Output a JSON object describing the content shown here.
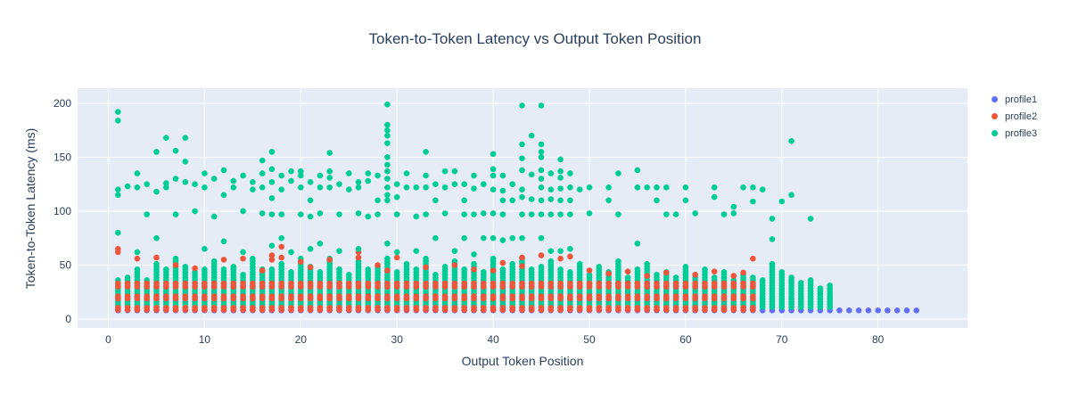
{
  "title": "Token-to-Token Latency vs Output Token Position",
  "chart_data": {
    "type": "scatter",
    "title": "Token-to-Token Latency vs Output Token Position",
    "xlabel": "Output Token Position",
    "ylabel": "Token-to-Token Latency (ms)",
    "x_ticks": [
      0,
      10,
      20,
      30,
      40,
      50,
      60,
      70,
      80
    ],
    "y_ticks": [
      0,
      50,
      100,
      150,
      200
    ],
    "x_range": [
      -3.2,
      89.3
    ],
    "y_range": [
      -8.3,
      214
    ],
    "grid": true,
    "legend_position": "outside-top-right",
    "plot_bg_color": "#e5ecf6",
    "grid_color": "#ffffff",
    "text_color": "#2a3f5f",
    "marker_radius": 3.3,
    "series": [
      {
        "name": "profile1",
        "color": "#636efa",
        "row": {
          "x_from": 1,
          "x_to": 84,
          "y": 8
        }
      },
      {
        "name": "profile2",
        "color": "#ef553b",
        "columns": {
          "x_from": 1,
          "x_to": 67,
          "ys": [
            8.5,
            10.5,
            19,
            21,
            30,
            33
          ],
          "tops": [
            33,
            36,
            33,
            38,
            34,
            36,
            33,
            35,
            38,
            33,
            36,
            34,
            33,
            38,
            35,
            33,
            36,
            33,
            38,
            34,
            33,
            36,
            35,
            33,
            38,
            33,
            36,
            34,
            38,
            33,
            35,
            36,
            33,
            38,
            34,
            33,
            36,
            33,
            35,
            38,
            33,
            34,
            36,
            33,
            38,
            35,
            33,
            36,
            34,
            33,
            38,
            33,
            36,
            35,
            33,
            38,
            34,
            33,
            36,
            33,
            38,
            35,
            33,
            36,
            34,
            33,
            38
          ]
        },
        "points": [
          [
            1,
            62
          ],
          [
            1,
            65
          ],
          [
            3,
            56
          ],
          [
            5,
            57
          ],
          [
            7,
            50
          ],
          [
            9,
            47
          ],
          [
            12,
            55
          ],
          [
            14,
            56
          ],
          [
            16,
            45
          ],
          [
            17,
            55
          ],
          [
            17,
            59
          ],
          [
            18,
            57
          ],
          [
            18,
            67
          ],
          [
            20,
            53
          ],
          [
            21,
            48
          ],
          [
            23,
            55
          ],
          [
            26,
            57
          ],
          [
            26,
            62
          ],
          [
            28,
            50
          ],
          [
            29,
            45
          ],
          [
            30,
            57
          ],
          [
            33,
            48
          ],
          [
            36,
            50
          ],
          [
            38,
            46
          ],
          [
            40,
            45
          ],
          [
            41,
            52
          ],
          [
            43,
            57
          ],
          [
            43,
            49
          ],
          [
            45,
            59
          ],
          [
            47,
            56
          ],
          [
            48,
            58
          ],
          [
            50,
            45
          ],
          [
            52,
            42
          ],
          [
            54,
            44
          ],
          [
            56,
            40
          ],
          [
            58,
            43
          ],
          [
            61,
            41
          ],
          [
            63,
            44
          ],
          [
            65,
            40
          ],
          [
            66,
            43
          ],
          [
            67,
            56
          ]
        ]
      },
      {
        "name": "profile3",
        "color": "#00cc96",
        "columns": {
          "x_from": 1,
          "x_to": 75,
          "y_start": 11,
          "y_step": 2.5,
          "tops": [
            36,
            40,
            46,
            38,
            52,
            48,
            57,
            50,
            44,
            48,
            54,
            46,
            50,
            42,
            56,
            48,
            46,
            52,
            44,
            58,
            50,
            44,
            56,
            48,
            42,
            54,
            46,
            50,
            58,
            44,
            52,
            46,
            56,
            42,
            50,
            54,
            46,
            52,
            44,
            58,
            48,
            52,
            56,
            46,
            50,
            54,
            48,
            44,
            52,
            42,
            50,
            44,
            55,
            40,
            46,
            52,
            42,
            44,
            40,
            50,
            42,
            46,
            40,
            44,
            38,
            42,
            40,
            36,
            52,
            44,
            40,
            34,
            36,
            30,
            32
          ]
        },
        "points": [
          [
            1,
            192
          ],
          [
            1,
            184
          ],
          [
            1,
            120
          ],
          [
            1,
            115
          ],
          [
            1,
            80
          ],
          [
            2,
            123
          ],
          [
            3,
            135
          ],
          [
            3,
            122
          ],
          [
            3,
            62
          ],
          [
            4,
            125
          ],
          [
            4,
            97
          ],
          [
            5,
            155
          ],
          [
            5,
            118
          ],
          [
            5,
            75
          ],
          [
            6,
            168
          ],
          [
            6,
            126
          ],
          [
            6,
            122
          ],
          [
            7,
            156
          ],
          [
            7,
            130
          ],
          [
            7,
            97
          ],
          [
            8,
            168
          ],
          [
            8,
            146
          ],
          [
            8,
            127
          ],
          [
            9,
            125
          ],
          [
            9,
            100
          ],
          [
            10,
            135
          ],
          [
            10,
            122
          ],
          [
            10,
            65
          ],
          [
            11,
            130
          ],
          [
            11,
            95
          ],
          [
            12,
            138
          ],
          [
            12,
            115
          ],
          [
            12,
            72
          ],
          [
            13,
            128
          ],
          [
            13,
            122
          ],
          [
            14,
            133
          ],
          [
            14,
            100
          ],
          [
            14,
            62
          ],
          [
            15,
            127
          ],
          [
            15,
            120
          ],
          [
            16,
            147
          ],
          [
            16,
            135
          ],
          [
            16,
            122
          ],
          [
            16,
            98
          ],
          [
            17,
            155
          ],
          [
            17,
            139
          ],
          [
            17,
            127
          ],
          [
            17,
            112
          ],
          [
            17,
            97
          ],
          [
            17,
            68
          ],
          [
            18,
            133
          ],
          [
            18,
            120
          ],
          [
            18,
            97
          ],
          [
            18,
            75
          ],
          [
            19,
            137
          ],
          [
            19,
            128
          ],
          [
            19,
            62
          ],
          [
            20,
            137
          ],
          [
            20,
            133
          ],
          [
            20,
            122
          ],
          [
            20,
            97
          ],
          [
            21,
            127
          ],
          [
            21,
            110
          ],
          [
            21,
            95
          ],
          [
            21,
            65
          ],
          [
            22,
            133
          ],
          [
            22,
            122
          ],
          [
            22,
            98
          ],
          [
            22,
            70
          ],
          [
            23,
            154
          ],
          [
            23,
            137
          ],
          [
            23,
            131
          ],
          [
            23,
            122
          ],
          [
            24,
            125
          ],
          [
            24,
            97
          ],
          [
            24,
            63
          ],
          [
            25,
            135
          ],
          [
            25,
            120
          ],
          [
            26,
            127
          ],
          [
            26,
            122
          ],
          [
            26,
            98
          ],
          [
            26,
            65
          ],
          [
            27,
            135
          ],
          [
            27,
            128
          ],
          [
            27,
            95
          ],
          [
            28,
            133
          ],
          [
            28,
            110
          ],
          [
            28,
            97
          ],
          [
            29,
            199
          ],
          [
            29,
            180
          ],
          [
            29,
            175
          ],
          [
            29,
            170
          ],
          [
            29,
            163
          ],
          [
            29,
            150
          ],
          [
            29,
            143
          ],
          [
            29,
            137
          ],
          [
            29,
            130
          ],
          [
            29,
            122
          ],
          [
            29,
            115
          ],
          [
            29,
            110
          ],
          [
            29,
            70
          ],
          [
            30,
            125
          ],
          [
            30,
            113
          ],
          [
            30,
            97
          ],
          [
            30,
            62
          ],
          [
            31,
            135
          ],
          [
            31,
            122
          ],
          [
            32,
            122
          ],
          [
            32,
            95
          ],
          [
            32,
            63
          ],
          [
            33,
            155
          ],
          [
            33,
            133
          ],
          [
            33,
            122
          ],
          [
            33,
            97
          ],
          [
            34,
            125
          ],
          [
            34,
            110
          ],
          [
            34,
            75
          ],
          [
            35,
            137
          ],
          [
            35,
            122
          ],
          [
            35,
            98
          ],
          [
            36,
            137
          ],
          [
            36,
            125
          ],
          [
            36,
            63
          ],
          [
            37,
            125
          ],
          [
            37,
            110
          ],
          [
            37,
            97
          ],
          [
            37,
            75
          ],
          [
            38,
            133
          ],
          [
            38,
            121
          ],
          [
            38,
            97
          ],
          [
            38,
            60
          ],
          [
            39,
            125
          ],
          [
            39,
            98
          ],
          [
            39,
            75
          ],
          [
            40,
            153
          ],
          [
            40,
            139
          ],
          [
            40,
            133
          ],
          [
            40,
            120
          ],
          [
            40,
            98
          ],
          [
            40,
            75
          ],
          [
            41,
            133
          ],
          [
            41,
            119
          ],
          [
            41,
            110
          ],
          [
            41,
            97
          ],
          [
            41,
            73
          ],
          [
            42,
            125
          ],
          [
            42,
            110
          ],
          [
            42,
            75
          ],
          [
            43,
            198
          ],
          [
            43,
            162
          ],
          [
            43,
            149
          ],
          [
            43,
            138
          ],
          [
            43,
            120
          ],
          [
            43,
            113
          ],
          [
            43,
            97
          ],
          [
            43,
            75
          ],
          [
            44,
            170
          ],
          [
            44,
            134
          ],
          [
            44,
            111
          ],
          [
            44,
            97
          ],
          [
            45,
            198
          ],
          [
            45,
            162
          ],
          [
            45,
            155
          ],
          [
            45,
            150
          ],
          [
            45,
            138
          ],
          [
            45,
            130
          ],
          [
            45,
            122
          ],
          [
            45,
            110
          ],
          [
            45,
            97
          ],
          [
            45,
            75
          ],
          [
            46,
            135
          ],
          [
            46,
            120
          ],
          [
            46,
            111
          ],
          [
            46,
            97
          ],
          [
            46,
            63
          ],
          [
            47,
            148
          ],
          [
            47,
            137
          ],
          [
            47,
            131
          ],
          [
            47,
            121
          ],
          [
            47,
            110
          ],
          [
            47,
            97
          ],
          [
            47,
            63
          ],
          [
            48,
            135
          ],
          [
            48,
            122
          ],
          [
            48,
            110
          ],
          [
            48,
            97
          ],
          [
            48,
            65
          ],
          [
            49,
            120
          ],
          [
            50,
            122
          ],
          [
            50,
            98
          ],
          [
            52,
            122
          ],
          [
            52,
            110
          ],
          [
            53,
            135
          ],
          [
            53,
            97
          ],
          [
            55,
            138
          ],
          [
            55,
            122
          ],
          [
            55,
            70
          ],
          [
            56,
            122
          ],
          [
            57,
            122
          ],
          [
            57,
            110
          ],
          [
            58,
            122
          ],
          [
            58,
            97
          ],
          [
            59,
            97
          ],
          [
            60,
            122
          ],
          [
            60,
            110
          ],
          [
            61,
            98
          ],
          [
            63,
            122
          ],
          [
            63,
            113
          ],
          [
            64,
            97
          ],
          [
            65,
            104
          ],
          [
            65,
            98
          ],
          [
            66,
            122
          ],
          [
            67,
            122
          ],
          [
            67,
            109
          ],
          [
            68,
            120
          ],
          [
            69,
            93
          ],
          [
            69,
            74
          ],
          [
            70,
            109
          ],
          [
            71,
            165
          ],
          [
            71,
            115
          ],
          [
            73,
            93
          ]
        ]
      }
    ]
  }
}
